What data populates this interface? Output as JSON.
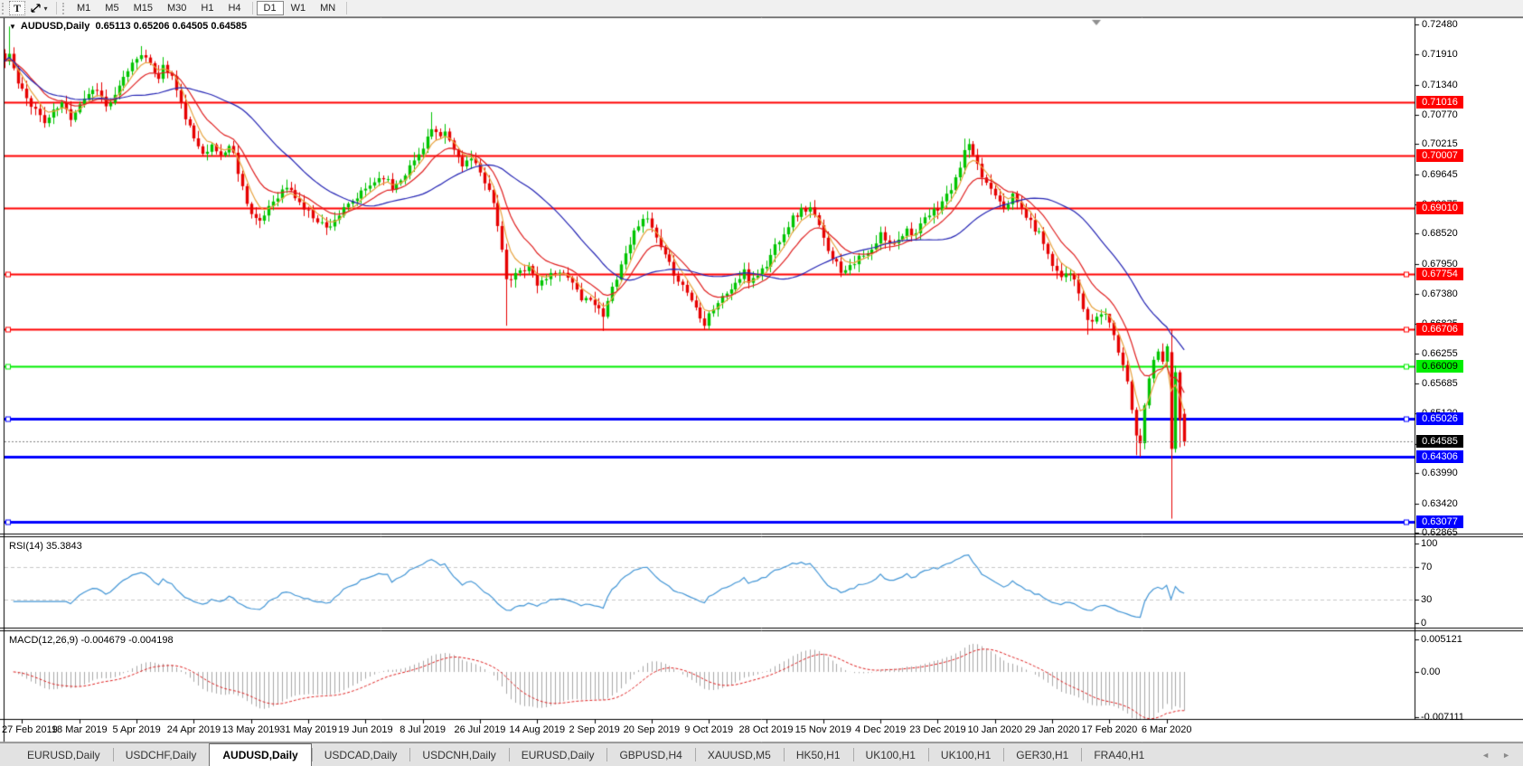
{
  "icons": {
    "symbol_dropdown": "▼",
    "tool_caret": "▾",
    "tab_left": "◄",
    "tab_right": "►"
  },
  "toolbar": {
    "text_tool_label": "T",
    "timeframes": [
      "M1",
      "M5",
      "M15",
      "M30",
      "H1",
      "H4",
      "D1",
      "W1",
      "MN"
    ],
    "active_timeframe": "D1"
  },
  "chart": {
    "title": {
      "symbol": "AUDUSD,Daily",
      "open": "0.65113",
      "high": "0.65206",
      "low": "0.64505",
      "close": "0.64585"
    },
    "price_axis": {
      "ticks": [
        "0.72480",
        "0.71910",
        "0.71340",
        "0.70770",
        "0.70215",
        "0.69645",
        "0.69075",
        "0.68520",
        "0.67950",
        "0.67380",
        "0.66825",
        "0.66255",
        "0.65685",
        "0.65120",
        "0.64550",
        "0.63990",
        "0.63420",
        "0.62865"
      ]
    },
    "current_price": {
      "label": "0.64585",
      "box_color": "#000000",
      "text_color": "#ffffff"
    },
    "hlines": [
      {
        "label": "0.71016",
        "price": 0.71016,
        "color": "#ff0000",
        "width": 2,
        "text": "#ffffff",
        "handles": false
      },
      {
        "label": "0.70007",
        "price": 0.70007,
        "color": "#ff0000",
        "width": 2,
        "text": "#ffffff",
        "handles": false
      },
      {
        "label": "0.69010",
        "price": 0.6901,
        "color": "#ff0000",
        "width": 2,
        "text": "#ffffff",
        "handles": false
      },
      {
        "label": "0.67754",
        "price": 0.67754,
        "color": "#ff0000",
        "width": 2,
        "text": "#ffffff",
        "handles": true
      },
      {
        "label": "0.66706",
        "price": 0.66706,
        "color": "#ff0000",
        "width": 2,
        "text": "#ffffff",
        "handles": true
      },
      {
        "label": "0.66009",
        "price": 0.66009,
        "color": "#00ee00",
        "width": 2,
        "text": "#000000",
        "handles": true
      },
      {
        "label": "0.65026",
        "price": 0.65026,
        "color": "#0000ff",
        "width": 3,
        "text": "#ffffff",
        "handles": true
      },
      {
        "label": "0.64306",
        "price": 0.64306,
        "color": "#0000ff",
        "width": 3,
        "text": "#ffffff",
        "handles": false
      },
      {
        "label": "0.63077",
        "price": 0.63077,
        "color": "#0000ff",
        "width": 3,
        "text": "#ffffff",
        "handles": true
      }
    ]
  },
  "rsi": {
    "label": "RSI(14) 35.3843",
    "period": 14,
    "value": 35.3843,
    "levels": [
      "100",
      "70",
      "30",
      "0"
    ],
    "dashed_levels": [
      70,
      30
    ],
    "line_color": "#4396d6"
  },
  "macd": {
    "label": "MACD(12,26,9) -0.004679 -0.004198",
    "params": [
      12,
      26,
      9
    ],
    "macd_value": -0.004679,
    "signal_value": -0.004198,
    "scale": [
      "0.005121",
      "0.00",
      "-0.007111"
    ],
    "histogram_color": "#a8a8a8",
    "signal_color": "#e02020"
  },
  "dates": [
    "27 Feb 2019",
    "18 Mar 2019",
    "5 Apr 2019",
    "24 Apr 2019",
    "13 May 2019",
    "31 May 2019",
    "19 Jun 2019",
    "8 Jul 2019",
    "26 Jul 2019",
    "14 Aug 2019",
    "2 Sep 2019",
    "20 Sep 2019",
    "9 Oct 2019",
    "28 Oct 2019",
    "15 Nov 2019",
    "4 Dec 2019",
    "23 Dec 2019",
    "10 Jan 2020",
    "29 Jan 2020",
    "17 Feb 2020",
    "6 Mar 2020"
  ],
  "tabs": {
    "items": [
      {
        "label": "EURUSD,Daily",
        "active": false
      },
      {
        "label": "USDCHF,Daily",
        "active": false
      },
      {
        "label": "AUDUSD,Daily",
        "active": true
      },
      {
        "label": "USDCAD,Daily",
        "active": false
      },
      {
        "label": "USDCNH,Daily",
        "active": false
      },
      {
        "label": "EURUSD,Daily",
        "active": false
      },
      {
        "label": "GBPUSD,H4",
        "active": false
      },
      {
        "label": "XAUUSD,M5",
        "active": false
      },
      {
        "label": "HK50,H1",
        "active": false
      },
      {
        "label": "UK100,H1",
        "active": false
      },
      {
        "label": "UK100,H1",
        "active": false
      },
      {
        "label": "GER30,H1",
        "active": false
      },
      {
        "label": "FRA40,H1",
        "active": false
      }
    ]
  },
  "chart_data": {
    "type": "candlestick",
    "symbol": "AUDUSD",
    "timeframe": "Daily",
    "bars": 269,
    "first_label_bar": 4,
    "bars_per_label": 13,
    "visible_price_range": [
      0.62865,
      0.7248
    ],
    "bull_color": "#00c400",
    "bear_color": "#e60000",
    "ma": [
      {
        "type": "ema",
        "period": 5,
        "color": "#e8a33d"
      },
      {
        "type": "ema",
        "period": 12,
        "color": "#e02020"
      },
      {
        "type": "sma",
        "period": 30,
        "color": "#2424b4"
      }
    ],
    "close_anchors": [
      [
        0,
        0.7178
      ],
      [
        1,
        0.7192
      ],
      [
        3,
        0.7135
      ],
      [
        5,
        0.7108
      ],
      [
        7,
        0.7088
      ],
      [
        9,
        0.7062
      ],
      [
        11,
        0.7082
      ],
      [
        13,
        0.7098
      ],
      [
        15,
        0.7072
      ],
      [
        17,
        0.71
      ],
      [
        19,
        0.7118
      ],
      [
        21,
        0.7128
      ],
      [
        23,
        0.7092
      ],
      [
        25,
        0.711
      ],
      [
        26,
        0.7128
      ],
      [
        28,
        0.7162
      ],
      [
        30,
        0.7186
      ],
      [
        31,
        0.7196
      ],
      [
        33,
        0.7168
      ],
      [
        35,
        0.715
      ],
      [
        36,
        0.7168
      ],
      [
        38,
        0.715
      ],
      [
        40,
        0.7095
      ],
      [
        42,
        0.7052
      ],
      [
        43,
        0.7028
      ],
      [
        45,
        0.701
      ],
      [
        47,
        0.7016
      ],
      [
        49,
        0.7
      ],
      [
        51,
        0.7018
      ],
      [
        52,
        0.7002
      ],
      [
        54,
        0.694
      ],
      [
        56,
        0.689
      ],
      [
        58,
        0.687
      ],
      [
        60,
        0.6905
      ],
      [
        62,
        0.6925
      ],
      [
        64,
        0.694
      ],
      [
        66,
        0.6922
      ],
      [
        68,
        0.69
      ],
      [
        70,
        0.6886
      ],
      [
        72,
        0.6872
      ],
      [
        73,
        0.6862
      ],
      [
        75,
        0.688
      ],
      [
        77,
        0.6896
      ],
      [
        79,
        0.6912
      ],
      [
        81,
        0.6928
      ],
      [
        82,
        0.6936
      ],
      [
        84,
        0.6952
      ],
      [
        86,
        0.6962
      ],
      [
        88,
        0.6938
      ],
      [
        90,
        0.6958
      ],
      [
        92,
        0.6978
      ],
      [
        94,
        0.7002
      ],
      [
        96,
        0.7035
      ],
      [
        97,
        0.7048
      ],
      [
        99,
        0.703
      ],
      [
        100,
        0.7044
      ],
      [
        102,
        0.701
      ],
      [
        104,
        0.6985
      ],
      [
        106,
        0.6992
      ],
      [
        108,
        0.6965
      ],
      [
        110,
        0.694
      ],
      [
        111,
        0.6908
      ],
      [
        112,
        0.686
      ],
      [
        113,
        0.6824
      ],
      [
        114,
        0.676
      ],
      [
        116,
        0.6774
      ],
      [
        119,
        0.6794
      ],
      [
        121,
        0.6754
      ],
      [
        123,
        0.677
      ],
      [
        126,
        0.6784
      ],
      [
        129,
        0.6764
      ],
      [
        131,
        0.672
      ],
      [
        133,
        0.6734
      ],
      [
        134,
        0.6718
      ],
      [
        136,
        0.6694
      ],
      [
        138,
        0.675
      ],
      [
        140,
        0.6794
      ],
      [
        142,
        0.6836
      ],
      [
        144,
        0.6872
      ],
      [
        145,
        0.6886
      ],
      [
        147,
        0.6862
      ],
      [
        149,
        0.6822
      ],
      [
        151,
        0.6792
      ],
      [
        153,
        0.6766
      ],
      [
        155,
        0.6742
      ],
      [
        157,
        0.6712
      ],
      [
        159,
        0.6684
      ],
      [
        160,
        0.6702
      ],
      [
        162,
        0.6722
      ],
      [
        164,
        0.674
      ],
      [
        166,
        0.6758
      ],
      [
        168,
        0.6778
      ],
      [
        169,
        0.6762
      ],
      [
        171,
        0.6776
      ],
      [
        173,
        0.6792
      ],
      [
        175,
        0.683
      ],
      [
        177,
        0.6856
      ],
      [
        179,
        0.6882
      ],
      [
        181,
        0.6896
      ],
      [
        183,
        0.69
      ],
      [
        185,
        0.6865
      ],
      [
        186,
        0.684
      ],
      [
        188,
        0.681
      ],
      [
        190,
        0.6782
      ],
      [
        192,
        0.6795
      ],
      [
        194,
        0.6805
      ],
      [
        196,
        0.6812
      ],
      [
        198,
        0.683
      ],
      [
        199,
        0.6852
      ],
      [
        201,
        0.683
      ],
      [
        203,
        0.6845
      ],
      [
        205,
        0.686
      ],
      [
        207,
        0.6852
      ],
      [
        209,
        0.6878
      ],
      [
        212,
        0.6902
      ],
      [
        214,
        0.6924
      ],
      [
        216,
        0.6952
      ],
      [
        217,
        0.6982
      ],
      [
        218,
        0.7005
      ],
      [
        219,
        0.7022
      ],
      [
        220,
        0.6995
      ],
      [
        222,
        0.696
      ],
      [
        224,
        0.6938
      ],
      [
        225,
        0.693
      ],
      [
        227,
        0.6905
      ],
      [
        229,
        0.6922
      ],
      [
        231,
        0.69
      ],
      [
        233,
        0.6872
      ],
      [
        235,
        0.6852
      ],
      [
        237,
        0.682
      ],
      [
        238,
        0.6792
      ],
      [
        240,
        0.6775
      ],
      [
        242,
        0.6782
      ],
      [
        244,
        0.6738
      ],
      [
        246,
        0.6682
      ],
      [
        248,
        0.6694
      ],
      [
        250,
        0.6704
      ],
      [
        251,
        0.6684
      ],
      [
        252,
        0.6654
      ],
      [
        253,
        0.663
      ],
      [
        254,
        0.6604
      ],
      [
        255,
        0.6574
      ],
      [
        256,
        0.6524
      ],
      [
        257,
        0.6474
      ],
      [
        258,
        0.6454
      ],
      [
        259,
        0.6534
      ],
      [
        260,
        0.6584
      ],
      [
        261,
        0.661
      ],
      [
        262,
        0.6634
      ],
      [
        263,
        0.6614
      ],
      [
        264,
        0.664
      ],
      [
        265,
        0.6445
      ],
      [
        266,
        0.659
      ],
      [
        267,
        0.65
      ],
      [
        268,
        0.64585
      ]
    ],
    "overrides": [
      {
        "i": 1,
        "h": 0.7244
      },
      {
        "i": 31,
        "h": 0.7207
      },
      {
        "i": 97,
        "h": 0.7082
      },
      {
        "i": 114,
        "l": 0.6678
      },
      {
        "i": 136,
        "l": 0.6668
      },
      {
        "i": 159,
        "l": 0.667
      },
      {
        "i": 183,
        "h": 0.6912
      },
      {
        "i": 190,
        "l": 0.677
      },
      {
        "i": 218,
        "h": 0.7032
      },
      {
        "i": 246,
        "l": 0.6661
      },
      {
        "i": 251,
        "h": 0.6671
      },
      {
        "i": 257,
        "l": 0.6433
      },
      {
        "i": 258,
        "l": 0.643
      },
      {
        "i": 265,
        "o": 0.6628,
        "h": 0.667,
        "l": 0.6313,
        "c": 0.6445
      },
      {
        "i": 266,
        "o": 0.6445,
        "h": 0.6602,
        "l": 0.6438,
        "c": 0.659
      },
      {
        "i": 267,
        "o": 0.659,
        "h": 0.6594,
        "l": 0.6448,
        "c": 0.65
      },
      {
        "i": 268,
        "o": 0.65113,
        "h": 0.65206,
        "l": 0.64505,
        "c": 0.64585
      }
    ]
  }
}
